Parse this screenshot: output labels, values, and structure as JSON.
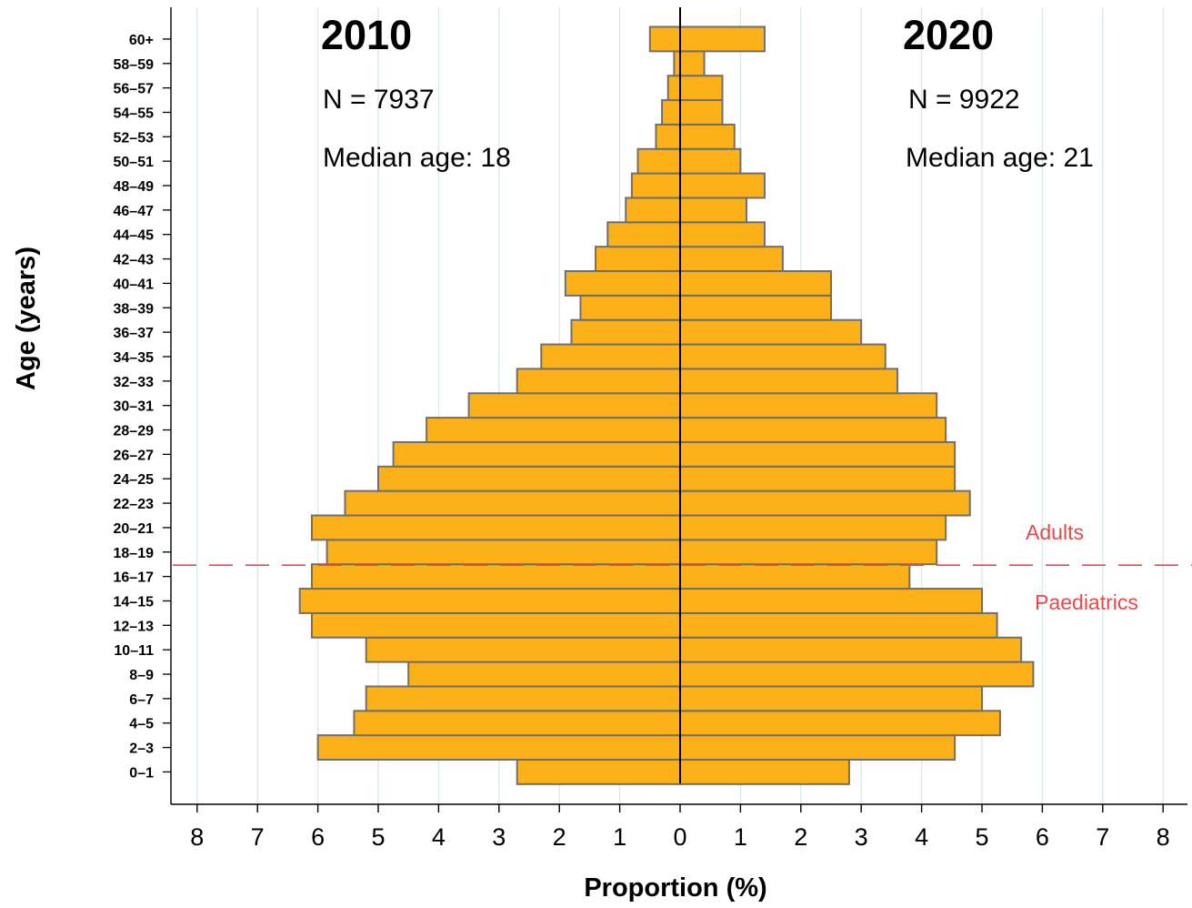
{
  "chart_data": {
    "type": "bar",
    "orientation": "horizontal-pyramid",
    "categories": [
      "0–1",
      "2–3",
      "4–5",
      "6–7",
      "8–9",
      "10–11",
      "12–13",
      "14–15",
      "16–17",
      "18–19",
      "20–21",
      "22–23",
      "24–25",
      "26–27",
      "28–29",
      "30–31",
      "32–33",
      "34–35",
      "36–37",
      "38–39",
      "40–41",
      "42–43",
      "44–45",
      "46–47",
      "48–49",
      "50–51",
      "52–53",
      "54–55",
      "56–57",
      "58–59",
      "60+"
    ],
    "series": [
      {
        "name": "2010",
        "side": "left",
        "values": [
          2.7,
          6.0,
          5.4,
          5.2,
          4.5,
          5.2,
          6.1,
          6.3,
          6.1,
          5.85,
          6.1,
          5.55,
          5.0,
          4.75,
          4.2,
          3.5,
          2.7,
          2.3,
          1.8,
          1.65,
          1.9,
          1.4,
          1.2,
          0.9,
          0.8,
          0.7,
          0.4,
          0.3,
          0.2,
          0.1,
          0.5
        ]
      },
      {
        "name": "2020",
        "side": "right",
        "values": [
          2.8,
          4.55,
          5.3,
          5.0,
          5.85,
          5.65,
          5.25,
          5.0,
          3.8,
          4.25,
          4.4,
          4.8,
          4.55,
          4.55,
          4.4,
          4.25,
          3.6,
          3.4,
          3.0,
          2.5,
          2.5,
          1.7,
          1.4,
          1.1,
          1.4,
          1.0,
          0.9,
          0.7,
          0.7,
          0.4,
          1.4
        ]
      }
    ],
    "xlabel": "Proportion (%)",
    "ylabel": "Age (years)",
    "xlim": [
      -8.5,
      8.5
    ],
    "xticks": [
      8,
      7,
      6,
      5,
      4,
      3,
      2,
      1,
      0,
      1,
      2,
      3,
      4,
      5,
      6,
      7,
      8
    ],
    "grid": "vertical",
    "bar_color": "#fbb117",
    "bar_edge_color": "#6f6f6f",
    "annotations": {
      "left_year": "2010",
      "left_n": "N = 7937",
      "left_median": "Median age: 18",
      "right_year": "2020",
      "right_n": "N = 9922",
      "right_median": "Median age: 21",
      "upper_region": "Adults",
      "lower_region": "Paediatrics",
      "divider_between": [
        "16–17",
        "18–19"
      ],
      "divider_color": "#e8474b"
    }
  }
}
